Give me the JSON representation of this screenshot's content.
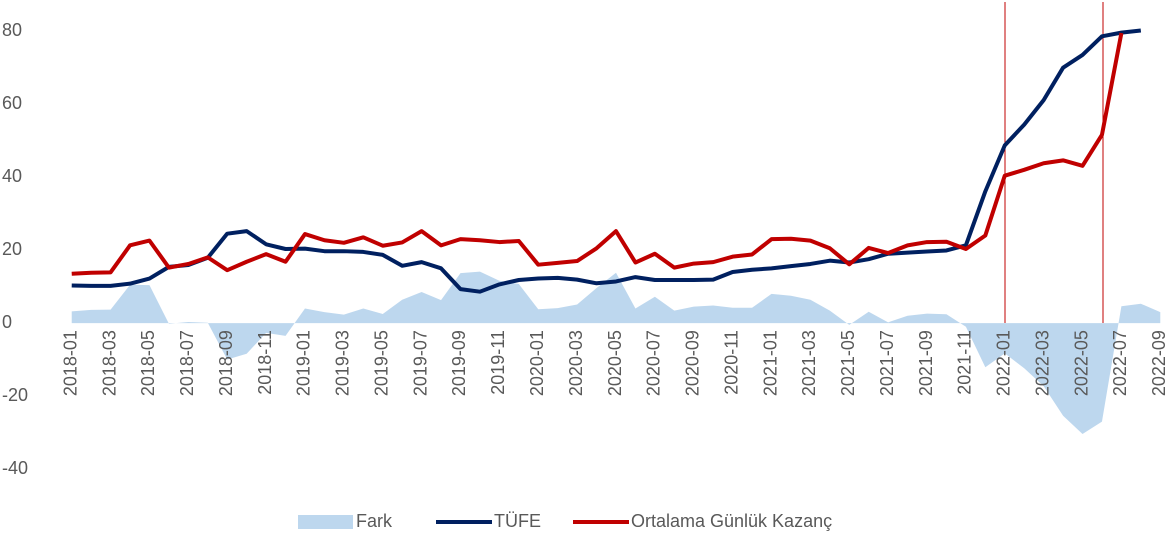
{
  "chart_data": {
    "type": "line",
    "categories": [
      "2018-01",
      null,
      "2018-03",
      null,
      "2018-05",
      null,
      "2018-07",
      null,
      "2018-09",
      null,
      "2018-11",
      null,
      "2019-01",
      null,
      "2019-03",
      null,
      "2019-05",
      null,
      "2019-07",
      null,
      "2019-09",
      null,
      "2019-11",
      null,
      "2020-01",
      null,
      "2020-03",
      null,
      "2020-05",
      null,
      "2020-07",
      null,
      "2020-09",
      null,
      "2020-11",
      null,
      "2021-01",
      null,
      "2021-03",
      null,
      "2021-05",
      null,
      "2021-07",
      null,
      "2021-09",
      null,
      "2021-11",
      null,
      "2022-01",
      null,
      "2022-03",
      null,
      "2022-05",
      null,
      "2022-07",
      null,
      "2022-09"
    ],
    "series": [
      {
        "name": "Fark",
        "type": "area",
        "color": "#bdd7ee",
        "values": [
          3.2,
          3.6,
          3.7,
          10.5,
          10.4,
          -0.2,
          0.3,
          0.1,
          -10.0,
          -8.4,
          -2.7,
          -3.5,
          4.0,
          3.0,
          2.3,
          4.0,
          2.5,
          6.4,
          8.5,
          6.3,
          13.7,
          14.1,
          11.6,
          10.7,
          3.8,
          4.1,
          5.1,
          9.6,
          13.8,
          4.0,
          7.2,
          3.4,
          4.5,
          4.8,
          4.2,
          4.2,
          8.0,
          7.5,
          6.4,
          3.4,
          -0.5,
          3.1,
          0.2,
          2.0,
          2.6,
          2.4,
          -1.0,
          -12.1,
          -8.3,
          -12.4,
          -17.3,
          -25.4,
          -30.4,
          -27.0,
          4.6,
          5.3,
          3.0
        ]
      },
      {
        "name": "TÜFE",
        "type": "line",
        "color": "#002060",
        "values": [
          10.3,
          10.2,
          10.2,
          10.8,
          12.2,
          15.4,
          15.9,
          17.9,
          24.5,
          25.2,
          21.6,
          20.3,
          20.4,
          19.7,
          19.7,
          19.5,
          18.7,
          15.7,
          16.7,
          15.0,
          9.3,
          8.6,
          10.6,
          11.8,
          12.2,
          12.4,
          11.9,
          10.9,
          11.4,
          12.6,
          11.8,
          11.8,
          11.8,
          11.9,
          14.0,
          14.6,
          15.0,
          15.6,
          16.2,
          17.1,
          16.6,
          17.5,
          19.0,
          19.3,
          19.6,
          19.9,
          21.3,
          36.1,
          48.7,
          54.4,
          61.1,
          70.0,
          73.5,
          78.6,
          79.6,
          80.2,
          null
        ]
      },
      {
        "name": "Ortalama Günlük Kazanç",
        "type": "line",
        "color": "#c00000",
        "values": [
          13.5,
          13.8,
          13.9,
          21.3,
          22.6,
          15.2,
          16.2,
          18.0,
          14.5,
          16.8,
          18.9,
          16.8,
          24.4,
          22.7,
          22.0,
          23.5,
          21.2,
          22.1,
          25.2,
          21.3,
          23.0,
          22.7,
          22.2,
          22.5,
          16.0,
          16.5,
          17.0,
          20.5,
          25.2,
          16.6,
          19.0,
          15.2,
          16.3,
          16.7,
          18.2,
          18.8,
          23.0,
          23.1,
          22.6,
          20.5,
          16.1,
          20.6,
          19.2,
          21.3,
          22.2,
          22.3,
          20.3,
          24.0,
          40.4,
          42.0,
          43.8,
          44.6,
          43.1,
          51.6,
          79.5,
          null,
          null
        ]
      }
    ],
    "ylim": [
      -40,
      88
    ],
    "yticks": [
      -40,
      -20,
      0,
      20,
      40,
      60,
      80
    ],
    "grid": false,
    "legend": "bottom"
  }
}
